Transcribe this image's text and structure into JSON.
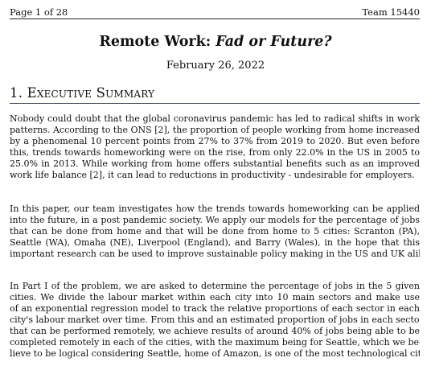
{
  "header": {
    "left": "Page 1 of 28",
    "right": "Team 15440"
  },
  "title": {
    "prefix": "Remote Work: ",
    "emphasis": "Fad or Future?"
  },
  "date": "February 26, 2022",
  "section": {
    "heading": "1. Executive Summary"
  },
  "paragraphs": [
    {
      "lines": [
        "Nobody could doubt that the global coronavirus pandemic has led to radical shifts in work",
        "patterns. According to the ONS [2], the proportion of people working from home increased",
        "by a phenomenal 10 percent points from 27% to 37% from 2019 to 2020. But even before",
        "this, trends towards homeworking were on the rise, from only 22.0% in the US in 2005 to",
        "25.0% in 2013. While working from home offers substantial benefits such as an improved",
        "work life balance [2], it can lead to reductions in productivity - undesirable for employers."
      ]
    },
    {
      "lines": [
        "In this paper, our team investigates how the trends towards homeworking can be applied",
        "into the future, in a post pandemic society. We apply our models for the percentage of jobs",
        "that can be done from home and that will be done from home to 5 cities: Scranton (PA),",
        "Seattle (WA), Omaha (NE), Liverpool (England), and Barry (Wales), in the hope that this",
        "important research can be used to improve sustainable policy making in the US and UK alike."
      ]
    },
    {
      "lines": [
        "In Part I of the problem, we are asked to determine the percentage of jobs in the 5 given",
        "cities. We divide the labour market within each city into 10 main sectors and make use",
        "of an exponential regression model to track the relative proportions of each sector in each",
        "city's labour market over time. From this and an estimated proportion of jobs in each sector",
        "that can be performed remotely, we achieve results of around 40% of jobs being able to be",
        "completed remotely in each of the cities, with the maximum being for Seattle, which we be-",
        "lieve to be logical considering Seattle, home of Amazon, is one of the most technological cities"
      ]
    }
  ]
}
